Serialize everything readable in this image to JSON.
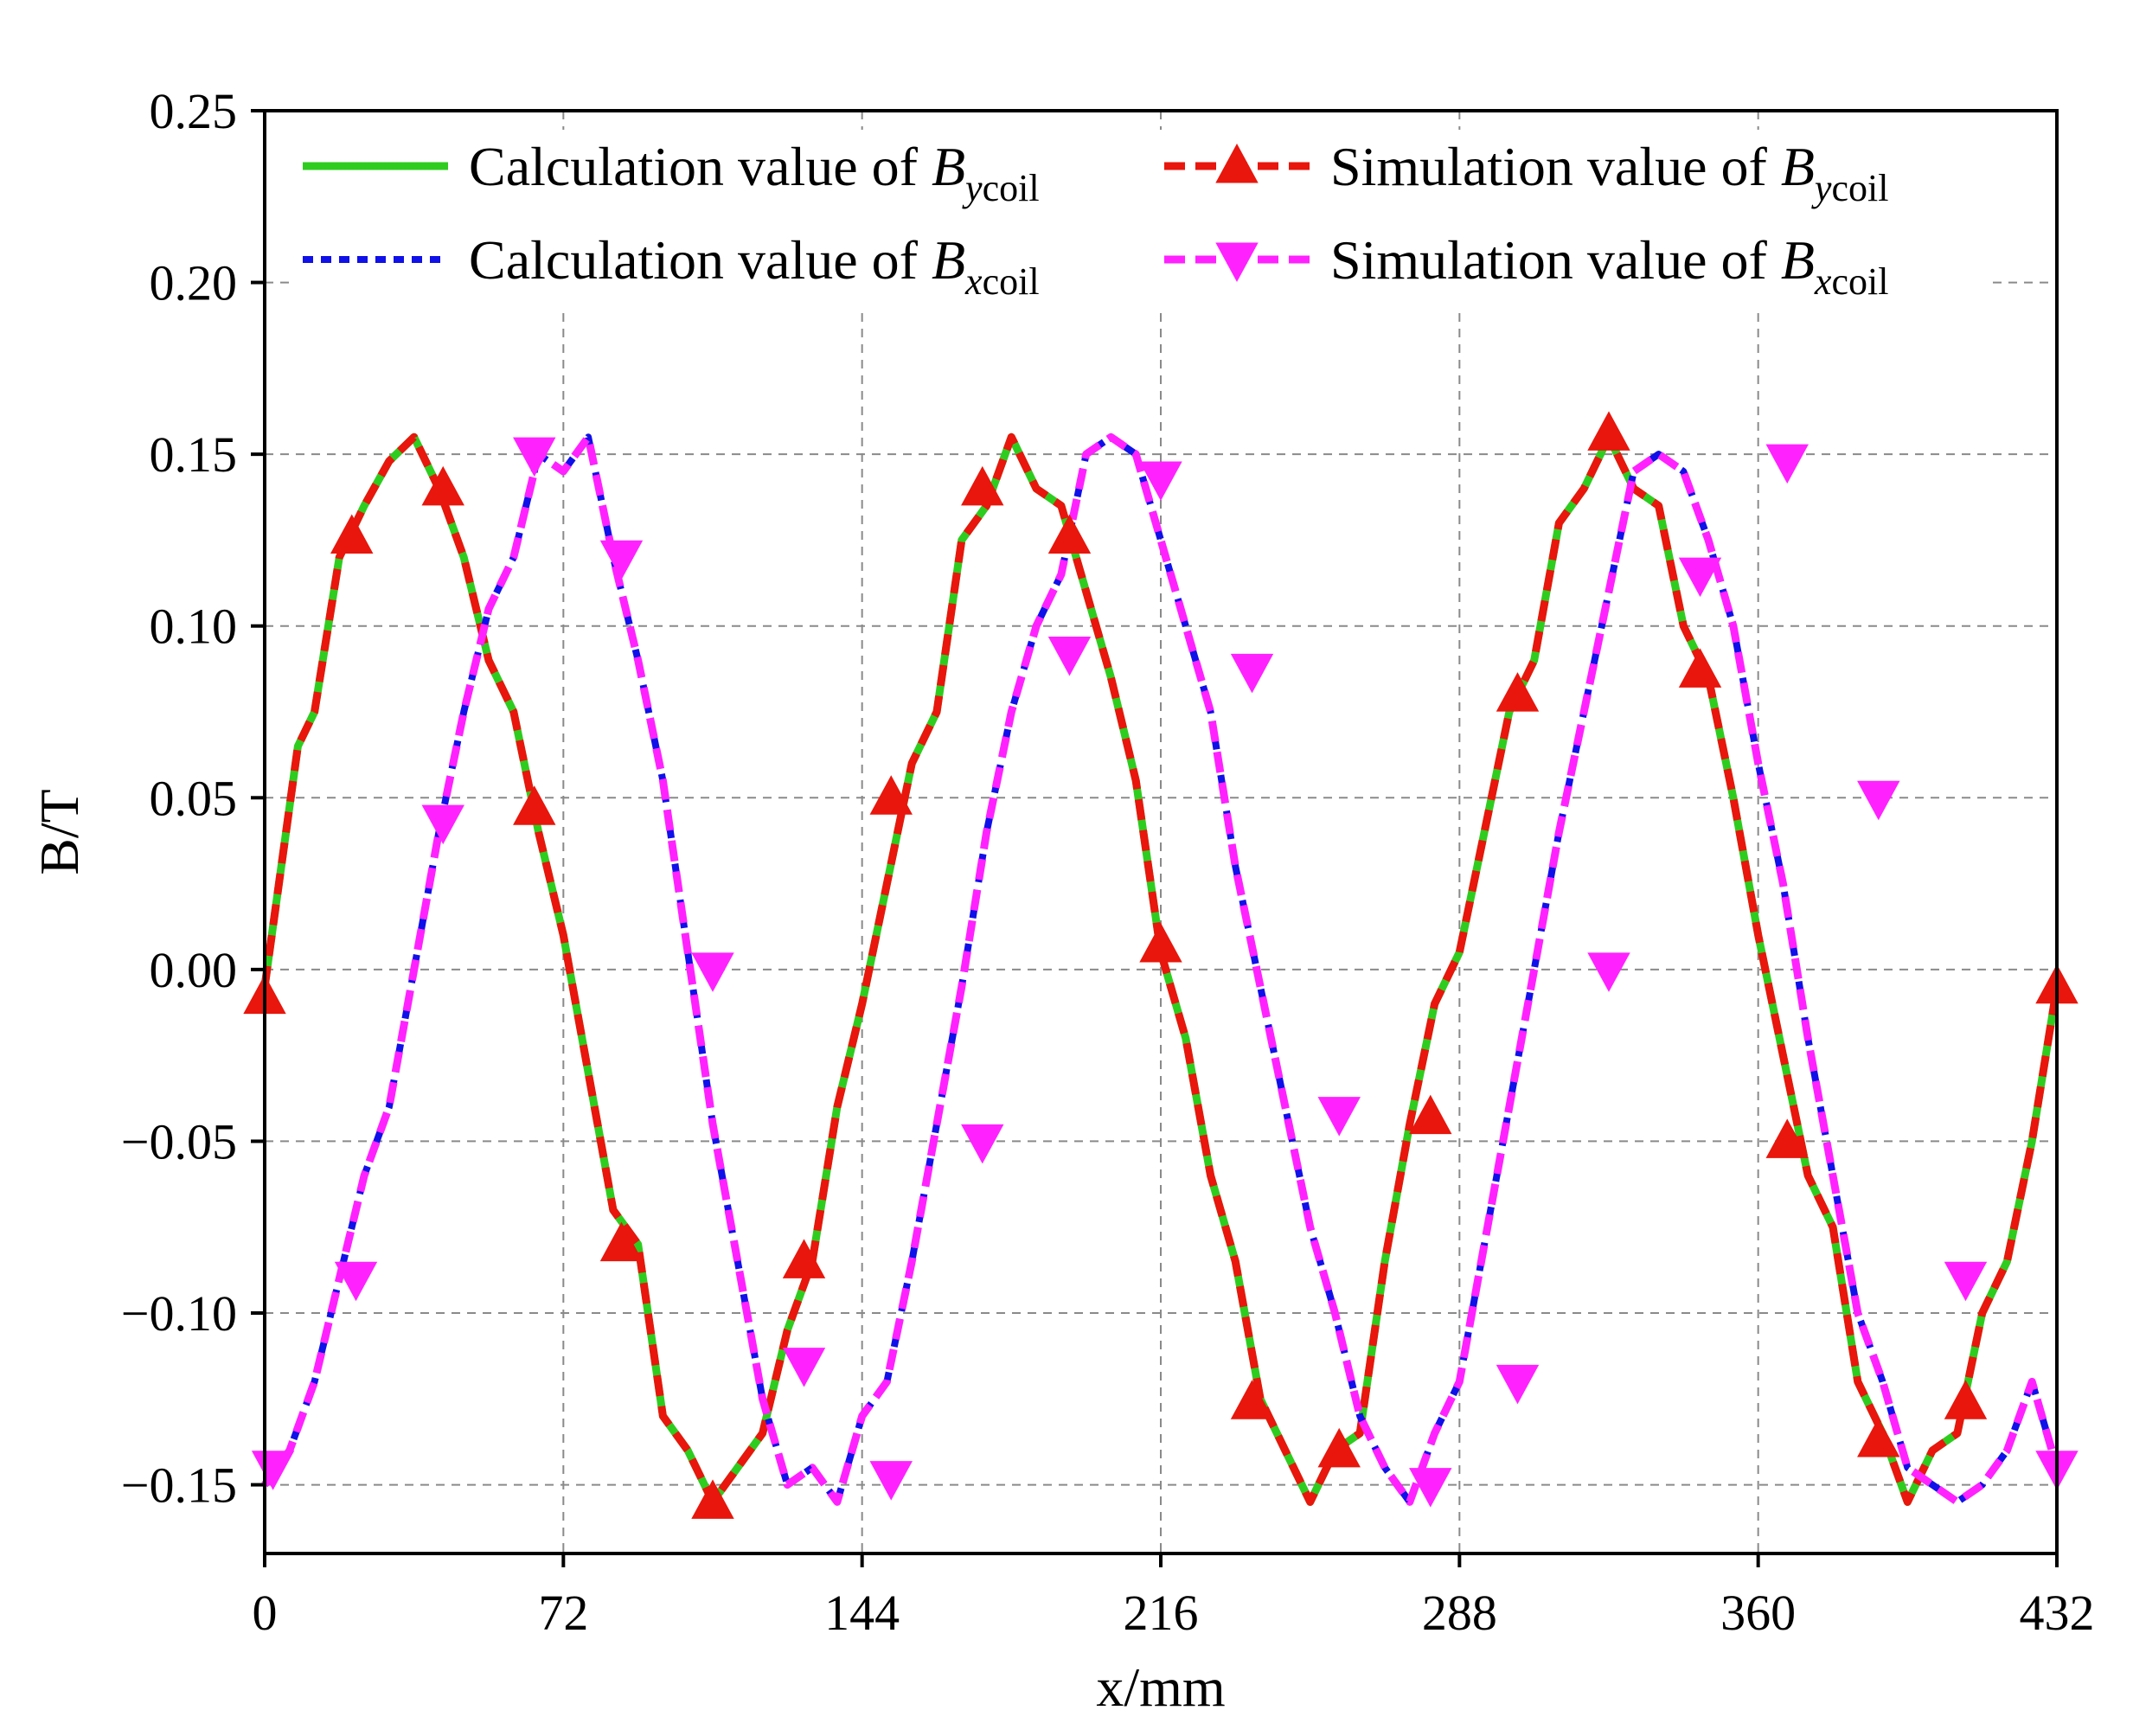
{
  "chart_data": {
    "type": "line",
    "xlabel": "x/mm",
    "ylabel": "B/T",
    "xlim": [
      0,
      432
    ],
    "ylim": [
      -0.17,
      0.25
    ],
    "xticks": [
      0,
      72,
      144,
      216,
      288,
      360,
      432
    ],
    "yticks": [
      0.25,
      0.2,
      0.15,
      0.1,
      0.05,
      0.0,
      -0.05,
      -0.1,
      -0.15
    ],
    "xtick_labels": [
      "0",
      "72",
      "144",
      "216",
      "288",
      "360",
      "432"
    ],
    "ytick_labels": [
      "0.25",
      "0.20",
      "0.15",
      "0.10",
      "0.05",
      "0.00",
      "−0.05",
      "−0.10",
      "−0.15"
    ],
    "grid": true,
    "legend_position": "top",
    "series": [
      {
        "name_prefix": "Calculation value of ",
        "name_symbol": "B",
        "name_subscript": "ycoil",
        "style": "solid",
        "color": "#2ecc1f",
        "marker": "none",
        "x": [
          0,
          4,
          8,
          12,
          18,
          24,
          30,
          36,
          42,
          48,
          54,
          60,
          66,
          72,
          78,
          84,
          90,
          96,
          102,
          108,
          114,
          120,
          126,
          132,
          138,
          144,
          150,
          156,
          162,
          168,
          174,
          180,
          186,
          192,
          198,
          204,
          210,
          216,
          222,
          228,
          234,
          240,
          246,
          252,
          258,
          264,
          270,
          276,
          282,
          288,
          294,
          300,
          306,
          312,
          318,
          324,
          330,
          336,
          342,
          348,
          354,
          360,
          366,
          372,
          378,
          384,
          390,
          396,
          402,
          408,
          414,
          420,
          426,
          432
        ],
        "y": [
          -0.005,
          0.03,
          0.065,
          0.075,
          0.12,
          0.135,
          0.148,
          0.155,
          0.14,
          0.12,
          0.09,
          0.075,
          0.04,
          0.01,
          -0.03,
          -0.07,
          -0.08,
          -0.13,
          -0.14,
          -0.155,
          -0.145,
          -0.135,
          -0.105,
          -0.085,
          -0.04,
          -0.01,
          0.025,
          0.06,
          0.075,
          0.125,
          0.135,
          0.155,
          0.14,
          0.135,
          0.11,
          0.085,
          0.055,
          0.005,
          -0.02,
          -0.06,
          -0.085,
          -0.125,
          -0.14,
          -0.155,
          -0.14,
          -0.135,
          -0.085,
          -0.045,
          -0.01,
          0.005,
          0.04,
          0.075,
          0.09,
          0.13,
          0.14,
          0.155,
          0.14,
          0.135,
          0.1,
          0.085,
          0.05,
          0.01,
          -0.025,
          -0.06,
          -0.075,
          -0.12,
          -0.135,
          -0.155,
          -0.14,
          -0.135,
          -0.1,
          -0.085,
          -0.05,
          -0.005
        ]
      },
      {
        "name_prefix": "Simulation value of ",
        "name_symbol": "B",
        "name_subscript": "ycoil",
        "style": "dashed",
        "color": "#e8160c",
        "marker": "triangle-up",
        "x": [
          0,
          4,
          8,
          12,
          18,
          24,
          30,
          36,
          42,
          48,
          54,
          60,
          66,
          72,
          78,
          84,
          90,
          96,
          102,
          108,
          114,
          120,
          126,
          132,
          138,
          144,
          150,
          156,
          162,
          168,
          174,
          180,
          186,
          192,
          198,
          204,
          210,
          216,
          222,
          228,
          234,
          240,
          246,
          252,
          258,
          264,
          270,
          276,
          282,
          288,
          294,
          300,
          306,
          312,
          318,
          324,
          330,
          336,
          342,
          348,
          354,
          360,
          366,
          372,
          378,
          384,
          390,
          396,
          402,
          408,
          414,
          420,
          426,
          432
        ],
        "y": [
          -0.005,
          0.03,
          0.065,
          0.075,
          0.12,
          0.135,
          0.148,
          0.155,
          0.14,
          0.12,
          0.09,
          0.075,
          0.04,
          0.01,
          -0.03,
          -0.07,
          -0.08,
          -0.13,
          -0.14,
          -0.155,
          -0.145,
          -0.135,
          -0.105,
          -0.085,
          -0.04,
          -0.01,
          0.025,
          0.06,
          0.075,
          0.125,
          0.135,
          0.155,
          0.14,
          0.135,
          0.11,
          0.085,
          0.055,
          0.005,
          -0.02,
          -0.06,
          -0.085,
          -0.125,
          -0.14,
          -0.155,
          -0.14,
          -0.135,
          -0.085,
          -0.045,
          -0.01,
          0.005,
          0.04,
          0.075,
          0.09,
          0.13,
          0.14,
          0.155,
          0.14,
          0.135,
          0.1,
          0.085,
          0.05,
          0.01,
          -0.025,
          -0.06,
          -0.075,
          -0.12,
          -0.135,
          -0.155,
          -0.14,
          -0.135,
          -0.1,
          -0.085,
          -0.05,
          -0.005
        ],
        "markers_x": [
          0,
          21,
          43,
          65,
          86,
          108,
          130,
          151,
          173,
          194,
          216,
          238,
          259,
          281,
          302,
          324,
          346,
          367,
          389,
          410,
          432
        ],
        "markers_y": [
          -0.008,
          0.126,
          0.14,
          0.047,
          -0.08,
          -0.155,
          -0.085,
          0.05,
          0.14,
          0.126,
          0.007,
          -0.126,
          -0.14,
          -0.043,
          0.08,
          0.156,
          0.087,
          -0.05,
          -0.137,
          -0.126,
          -0.005
        ]
      },
      {
        "name_prefix": "Calculation value of ",
        "name_symbol": "B",
        "name_subscript": "xcoil",
        "style": "dotted",
        "color": "#1010e8",
        "marker": "none",
        "x": [
          0,
          6,
          12,
          18,
          24,
          30,
          36,
          42,
          48,
          54,
          60,
          66,
          72,
          78,
          84,
          90,
          96,
          102,
          108,
          114,
          120,
          126,
          132,
          138,
          144,
          150,
          156,
          162,
          168,
          174,
          180,
          186,
          192,
          198,
          204,
          210,
          216,
          222,
          228,
          234,
          240,
          246,
          252,
          258,
          264,
          270,
          276,
          282,
          288,
          294,
          300,
          306,
          312,
          318,
          324,
          330,
          336,
          342,
          348,
          354,
          360,
          366,
          372,
          378,
          384,
          390,
          396,
          402,
          408,
          414,
          420,
          426,
          432
        ],
        "y": [
          -0.15,
          -0.14,
          -0.12,
          -0.09,
          -0.06,
          -0.04,
          0.0,
          0.04,
          0.075,
          0.105,
          0.12,
          0.15,
          0.145,
          0.155,
          0.12,
          0.09,
          0.055,
          0.005,
          -0.045,
          -0.085,
          -0.125,
          -0.15,
          -0.145,
          -0.155,
          -0.13,
          -0.12,
          -0.085,
          -0.045,
          -0.005,
          0.04,
          0.075,
          0.1,
          0.115,
          0.15,
          0.155,
          0.15,
          0.125,
          0.1,
          0.075,
          0.03,
          -0.005,
          -0.04,
          -0.075,
          -0.1,
          -0.13,
          -0.145,
          -0.155,
          -0.135,
          -0.12,
          -0.08,
          -0.04,
          0.0,
          0.04,
          0.075,
          0.11,
          0.145,
          0.15,
          0.145,
          0.125,
          0.1,
          0.06,
          0.025,
          -0.02,
          -0.06,
          -0.1,
          -0.12,
          -0.145,
          -0.15,
          -0.155,
          -0.15,
          -0.14,
          -0.12,
          -0.145
        ]
      },
      {
        "name_prefix": "Simulation value of ",
        "name_symbol": "B",
        "name_subscript": "xcoil",
        "style": "dashed",
        "color": "#ff22ff",
        "marker": "triangle-down",
        "x": [
          0,
          6,
          12,
          18,
          24,
          30,
          36,
          42,
          48,
          54,
          60,
          66,
          72,
          78,
          84,
          90,
          96,
          102,
          108,
          114,
          120,
          126,
          132,
          138,
          144,
          150,
          156,
          162,
          168,
          174,
          180,
          186,
          192,
          198,
          204,
          210,
          216,
          222,
          228,
          234,
          240,
          246,
          252,
          258,
          264,
          270,
          276,
          282,
          288,
          294,
          300,
          306,
          312,
          318,
          324,
          330,
          336,
          342,
          348,
          354,
          360,
          366,
          372,
          378,
          384,
          390,
          396,
          402,
          408,
          414,
          420,
          426,
          432
        ],
        "y": [
          -0.15,
          -0.14,
          -0.12,
          -0.09,
          -0.06,
          -0.04,
          0.0,
          0.04,
          0.075,
          0.105,
          0.12,
          0.15,
          0.145,
          0.155,
          0.12,
          0.09,
          0.055,
          0.005,
          -0.045,
          -0.085,
          -0.125,
          -0.15,
          -0.145,
          -0.155,
          -0.13,
          -0.12,
          -0.085,
          -0.045,
          -0.005,
          0.04,
          0.075,
          0.1,
          0.115,
          0.15,
          0.155,
          0.15,
          0.125,
          0.1,
          0.075,
          0.03,
          -0.005,
          -0.04,
          -0.075,
          -0.1,
          -0.13,
          -0.145,
          -0.155,
          -0.135,
          -0.12,
          -0.08,
          -0.04,
          0.0,
          0.04,
          0.075,
          0.11,
          0.145,
          0.15,
          0.145,
          0.125,
          0.1,
          0.06,
          0.025,
          -0.02,
          -0.06,
          -0.1,
          -0.12,
          -0.145,
          -0.15,
          -0.155,
          -0.15,
          -0.14,
          -0.12,
          -0.145
        ],
        "markers_x": [
          2,
          22,
          43,
          65,
          86,
          108,
          130,
          151,
          173,
          194,
          216,
          238,
          259,
          281,
          302,
          324,
          346,
          367,
          389,
          410,
          432
        ],
        "markers_y": [
          -0.145,
          -0.09,
          0.043,
          0.15,
          0.12,
          0.0,
          -0.115,
          -0.148,
          -0.05,
          0.092,
          0.143,
          0.087,
          -0.042,
          -0.15,
          -0.12,
          0.0,
          0.115,
          0.148,
          0.05,
          -0.09,
          -0.145
        ]
      }
    ]
  }
}
